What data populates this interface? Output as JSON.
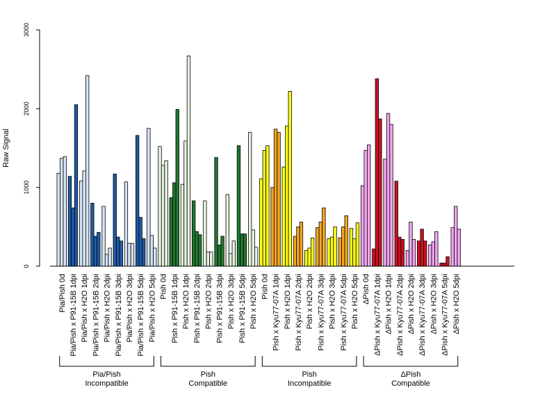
{
  "chart_data": {
    "type": "bar",
    "ylabel": "Raw Signal",
    "ylim": [
      0,
      3000
    ],
    "yticks": [
      0,
      1000,
      2000,
      3000
    ],
    "grid": false,
    "colors": {
      "light_blue": "#d6e4f5",
      "dark_blue": "#1f5ba6",
      "light_green": "#e6f3e0",
      "dark_green": "#23772f",
      "yellow": "#ffff1a",
      "orange": "#f5a623",
      "pink": "#f2a6ef",
      "red": "#cc1122"
    },
    "categories": [
      {
        "label": "Pia/Pish 0d",
        "color": "light_blue",
        "values": [
          1180,
          1370,
          1390
        ]
      },
      {
        "label": "Pia/Pish x P91-15B 1dpi",
        "color": "dark_blue",
        "values": [
          1140,
          740,
          2050
        ]
      },
      {
        "label": "Pia/Pish x H2O 1dpi",
        "color": "light_blue",
        "values": [
          1080,
          1210,
          2420
        ]
      },
      {
        "label": "Pia/Pish x P91-15B 2dpi",
        "color": "dark_blue",
        "values": [
          800,
          380,
          430
        ]
      },
      {
        "label": "Pia/Pish x H2O 2dpi",
        "color": "light_blue",
        "values": [
          760,
          150,
          230
        ]
      },
      {
        "label": "Pia/Pish x P91-15B 3dpi",
        "color": "dark_blue",
        "values": [
          1170,
          370,
          320
        ]
      },
      {
        "label": "Pia/Pish x H2O 3dpi",
        "color": "light_blue",
        "values": [
          1070,
          290,
          290
        ]
      },
      {
        "label": "Pia/Pish x P91-15B 5dpi",
        "color": "dark_blue",
        "values": [
          1660,
          620,
          350
        ]
      },
      {
        "label": "Pia/Pish x H2O 5dpi",
        "color": "light_blue",
        "values": [
          1750,
          390,
          230
        ]
      },
      {
        "label": "Pish 0d",
        "color": "light_green",
        "values": [
          1520,
          1280,
          1340
        ]
      },
      {
        "label": "Pish x P91-15B 1dpi",
        "color": "dark_green",
        "values": [
          870,
          1060,
          1990
        ]
      },
      {
        "label": "Pish x H2O 1dpi",
        "color": "light_green",
        "values": [
          1040,
          1590,
          2670
        ]
      },
      {
        "label": "Pish x P91-15B 2dpi",
        "color": "dark_green",
        "values": [
          830,
          440,
          400
        ]
      },
      {
        "label": "Pish x H2O 2dpi",
        "color": "light_green",
        "values": [
          830,
          180,
          180
        ]
      },
      {
        "label": "Pish x P91-15B 3dpi",
        "color": "dark_green",
        "values": [
          1380,
          270,
          380
        ]
      },
      {
        "label": "Pish x H2O 3dpi",
        "color": "light_green",
        "values": [
          910,
          160,
          320
        ]
      },
      {
        "label": "Pish x P91-15B 5dpi",
        "color": "dark_green",
        "values": [
          1530,
          410,
          410
        ]
      },
      {
        "label": "Pish x H2O 5dpi",
        "color": "light_green",
        "values": [
          1700,
          460,
          240
        ]
      },
      {
        "label": "Pish 0d",
        "color": "yellow",
        "values": [
          1110,
          1470,
          1530
        ]
      },
      {
        "label": "Pish x Kyu77-07A 1dpi",
        "color": "orange",
        "values": [
          1000,
          1740,
          1700
        ]
      },
      {
        "label": "Pish x H2O 1dpi",
        "color": "yellow",
        "values": [
          1260,
          1780,
          2220
        ]
      },
      {
        "label": "Pish x Kyu77-07A 2dpi",
        "color": "orange",
        "values": [
          380,
          500,
          560
        ]
      },
      {
        "label": "Pish x H2O 2dpi",
        "color": "yellow",
        "values": [
          200,
          230,
          360
        ]
      },
      {
        "label": "Pish x Kyu77-07A 3dpi",
        "color": "orange",
        "values": [
          490,
          560,
          740
        ]
      },
      {
        "label": "Pish x H2O 3dpi",
        "color": "yellow",
        "values": [
          350,
          370,
          500
        ]
      },
      {
        "label": "Pish x Kyu77-07A 5dpi",
        "color": "orange",
        "values": [
          360,
          500,
          640
        ]
      },
      {
        "label": "Pish x H2O 5dpi",
        "color": "yellow",
        "values": [
          480,
          350,
          550
        ]
      },
      {
        "label": "ΔPish 0d",
        "color": "pink",
        "values": [
          1020,
          1470,
          1540
        ]
      },
      {
        "label": "ΔPish x Kyu77-07A 1dpi",
        "color": "red",
        "values": [
          220,
          2380,
          1870
        ]
      },
      {
        "label": "ΔPish x H2O 1dpi",
        "color": "pink",
        "values": [
          1360,
          1940,
          1800
        ]
      },
      {
        "label": "ΔPish x Kyu77-07A 2dpi",
        "color": "red",
        "values": [
          1080,
          370,
          340
        ]
      },
      {
        "label": "ΔPish x H2O 2dpi",
        "color": "pink",
        "values": [
          200,
          560,
          340
        ]
      },
      {
        "label": "ΔPish x Kyu77-07A 3dpi",
        "color": "red",
        "values": [
          320,
          470,
          320
        ]
      },
      {
        "label": "ΔPish x H2O 3dpi",
        "color": "pink",
        "values": [
          270,
          310,
          440
        ]
      },
      {
        "label": "ΔPish x Kyu77-07A 5dpi",
        "color": "red",
        "values": [
          40,
          40,
          120
        ]
      },
      {
        "label": "ΔPish x H2O 5dpi",
        "color": "pink",
        "values": [
          490,
          760,
          470
        ]
      }
    ],
    "groups": [
      {
        "line1": "Pia/Pish",
        "line2": "Incompatible",
        "start": 0,
        "end": 8
      },
      {
        "line1": "Pish",
        "line2": "Compatible",
        "start": 9,
        "end": 17
      },
      {
        "line1": "Pish",
        "line2": "Incompatible",
        "start": 18,
        "end": 26
      },
      {
        "line1": "ΔPish",
        "line2": "Compatible",
        "start": 27,
        "end": 35
      }
    ]
  }
}
